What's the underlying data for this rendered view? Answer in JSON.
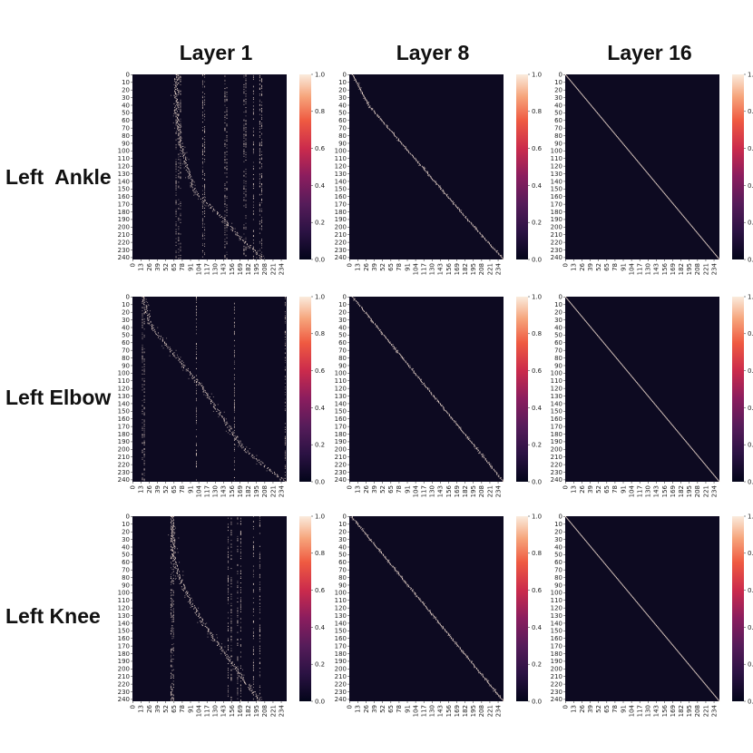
{
  "columns": [
    "Layer 1",
    "Layer 8",
    "Layer 16"
  ],
  "rows": [
    "Left  Ankle",
    "Left Elbow",
    "Left Knee"
  ],
  "chart_data": {
    "type": "heatmap",
    "matrix_size": 243,
    "ytick_labels": [
      "0",
      "10",
      "20",
      "30",
      "40",
      "50",
      "60",
      "70",
      "80",
      "90",
      "100",
      "110",
      "120",
      "130",
      "140",
      "150",
      "160",
      "170",
      "180",
      "190",
      "200",
      "210",
      "220",
      "230",
      "240"
    ],
    "xtick_labels": [
      "0",
      "13",
      "26",
      "39",
      "52",
      "65",
      "78",
      "91",
      "104",
      "117",
      "130",
      "143",
      "156",
      "169",
      "182",
      "195",
      "208",
      "221",
      "234"
    ],
    "colorbar_ticks": [
      "0.0",
      "0.2",
      "0.4",
      "0.6",
      "0.8",
      "1.0"
    ],
    "value_range": [
      0,
      1
    ],
    "colormap": "rocket",
    "panels": [
      {
        "row": "Left  Ankle",
        "column": "Layer 1",
        "pattern": "scattered",
        "vertical_streaks": [
          68,
          72,
          75,
          110,
          113,
          145,
          148,
          175,
          178,
          190,
          200,
          203
        ],
        "diagonal_deviation": [
          [
            0,
            68
          ],
          [
            50,
            68
          ],
          [
            70,
            72
          ],
          [
            90,
            75
          ],
          [
            150,
            95
          ],
          [
            243,
            205
          ]
        ]
      },
      {
        "row": "Left  Ankle",
        "column": "Layer 8",
        "pattern": "near-diagonal",
        "bands": [
          [
            0,
            5
          ],
          [
            40,
            30
          ],
          [
            175,
            170
          ],
          [
            243,
            243
          ]
        ]
      },
      {
        "row": "Left  Ankle",
        "column": "Layer 16",
        "pattern": "diagonal"
      },
      {
        "row": "Left Elbow",
        "column": "Layer 1",
        "pattern": "scattered",
        "vertical_streaks": [
          15,
          18,
          100,
          160,
          240
        ],
        "diagonal_deviation": [
          [
            0,
            15
          ],
          [
            40,
            30
          ],
          [
            120,
            110
          ],
          [
            200,
            175
          ],
          [
            243,
            240
          ]
        ]
      },
      {
        "row": "Left Elbow",
        "column": "Layer 8",
        "pattern": "near-diagonal",
        "bands": [
          [
            0,
            5
          ],
          [
            243,
            243
          ]
        ]
      },
      {
        "row": "Left Elbow",
        "column": "Layer 16",
        "pattern": "diagonal"
      },
      {
        "row": "Left Knee",
        "column": "Layer 1",
        "pattern": "scattered",
        "vertical_streaks": [
          60,
          62,
          64,
          150,
          155,
          165,
          170,
          190,
          200
        ],
        "diagonal_deviation": [
          [
            0,
            62
          ],
          [
            60,
            65
          ],
          [
            90,
            78
          ],
          [
            140,
            110
          ],
          [
            243,
            200
          ]
        ]
      },
      {
        "row": "Left Knee",
        "column": "Layer 8",
        "pattern": "near-diagonal",
        "bands": [
          [
            0,
            3
          ],
          [
            243,
            243
          ]
        ]
      },
      {
        "row": "Left Knee",
        "column": "Layer 16",
        "pattern": "diagonal"
      }
    ]
  }
}
